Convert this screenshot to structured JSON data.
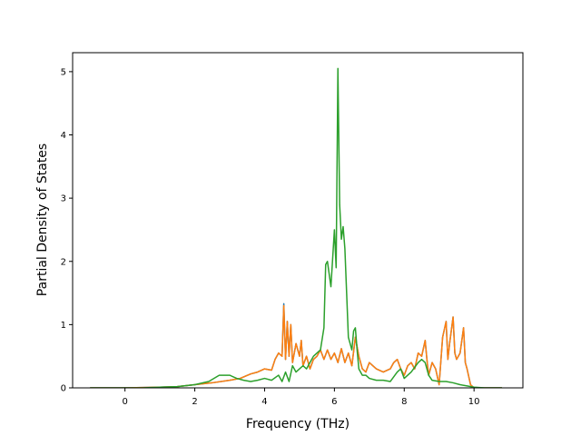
{
  "chart_data": {
    "type": "line",
    "title": "",
    "xlabel": "Frequency (THz)",
    "ylabel": "Partial Density of States",
    "xlim": [
      -1.5,
      11.4
    ],
    "ylim": [
      0,
      5.3
    ],
    "xticks": [
      0,
      2,
      4,
      6,
      8,
      10
    ],
    "yticks": [
      0,
      1,
      2,
      3,
      4,
      5
    ],
    "grid": false,
    "legend": "none",
    "series": [
      {
        "color": "#1f77b4",
        "x": [
          -1.0,
          0.0,
          1.0,
          1.5,
          2.0,
          2.5,
          3.0,
          3.3,
          3.6,
          3.8,
          4.0,
          4.2,
          4.3,
          4.4,
          4.5,
          4.55,
          4.6,
          4.65,
          4.7,
          4.75,
          4.8,
          4.85,
          4.9,
          5.0,
          5.05,
          5.1,
          5.2,
          5.3,
          5.4,
          5.5,
          5.6,
          5.7,
          5.8,
          5.9,
          6.0,
          6.1,
          6.2,
          6.3,
          6.4,
          6.5,
          6.6,
          6.7,
          6.8,
          6.9,
          7.0,
          7.2,
          7.4,
          7.6,
          7.7,
          7.8,
          7.9,
          8.0,
          8.1,
          8.2,
          8.3,
          8.4,
          8.5,
          8.6,
          8.65,
          8.7,
          8.8,
          8.9,
          9.0,
          9.1,
          9.2,
          9.25,
          9.3,
          9.4,
          9.45,
          9.5,
          9.6,
          9.7,
          9.75,
          9.8,
          9.9,
          10.0,
          10.8
        ],
        "values": [
          0,
          0.0,
          0.01,
          0.02,
          0.05,
          0.08,
          0.12,
          0.15,
          0.22,
          0.25,
          0.3,
          0.28,
          0.45,
          0.55,
          0.5,
          1.33,
          0.45,
          1.05,
          0.5,
          1.0,
          0.4,
          0.55,
          0.7,
          0.5,
          0.75,
          0.35,
          0.5,
          0.3,
          0.45,
          0.5,
          0.6,
          0.45,
          0.6,
          0.45,
          0.55,
          0.4,
          0.62,
          0.4,
          0.55,
          0.35,
          0.8,
          0.5,
          0.3,
          0.25,
          0.4,
          0.3,
          0.25,
          0.3,
          0.4,
          0.45,
          0.3,
          0.2,
          0.35,
          0.4,
          0.3,
          0.55,
          0.5,
          0.75,
          0.45,
          0.2,
          0.4,
          0.3,
          0.05,
          0.8,
          1.05,
          0.45,
          0.7,
          1.12,
          0.55,
          0.45,
          0.55,
          0.95,
          0.4,
          0.3,
          0.05,
          0.0,
          0.0
        ]
      },
      {
        "color": "#ff7f0e",
        "x": [
          -1.0,
          0.0,
          1.0,
          1.5,
          2.0,
          2.5,
          3.0,
          3.3,
          3.6,
          3.8,
          4.0,
          4.2,
          4.3,
          4.4,
          4.5,
          4.55,
          4.6,
          4.65,
          4.7,
          4.75,
          4.8,
          4.85,
          4.9,
          5.0,
          5.05,
          5.1,
          5.2,
          5.3,
          5.4,
          5.5,
          5.6,
          5.7,
          5.8,
          5.9,
          6.0,
          6.1,
          6.2,
          6.3,
          6.4,
          6.5,
          6.6,
          6.7,
          6.8,
          6.9,
          7.0,
          7.2,
          7.4,
          7.6,
          7.7,
          7.8,
          7.9,
          8.0,
          8.1,
          8.2,
          8.3,
          8.4,
          8.5,
          8.6,
          8.65,
          8.7,
          8.8,
          8.9,
          9.0,
          9.1,
          9.2,
          9.25,
          9.3,
          9.4,
          9.45,
          9.5,
          9.6,
          9.7,
          9.75,
          9.8,
          9.9,
          10.0,
          10.8
        ],
        "values": [
          0,
          0.0,
          0.01,
          0.02,
          0.05,
          0.08,
          0.12,
          0.15,
          0.22,
          0.25,
          0.3,
          0.28,
          0.45,
          0.55,
          0.5,
          1.3,
          0.45,
          1.05,
          0.5,
          1.0,
          0.4,
          0.55,
          0.7,
          0.5,
          0.75,
          0.35,
          0.5,
          0.3,
          0.45,
          0.5,
          0.6,
          0.45,
          0.6,
          0.45,
          0.55,
          0.4,
          0.62,
          0.4,
          0.55,
          0.35,
          0.8,
          0.5,
          0.3,
          0.25,
          0.4,
          0.3,
          0.25,
          0.3,
          0.4,
          0.45,
          0.3,
          0.2,
          0.35,
          0.4,
          0.3,
          0.55,
          0.5,
          0.75,
          0.45,
          0.2,
          0.4,
          0.3,
          0.05,
          0.8,
          1.05,
          0.45,
          0.7,
          1.12,
          0.55,
          0.45,
          0.55,
          0.95,
          0.4,
          0.3,
          0.05,
          0.0,
          0.0
        ]
      },
      {
        "color": "#2ca02c",
        "x": [
          -1.0,
          0.0,
          0.5,
          1.0,
          1.5,
          2.0,
          2.4,
          2.7,
          3.0,
          3.2,
          3.4,
          3.6,
          3.8,
          4.0,
          4.2,
          4.4,
          4.5,
          4.6,
          4.7,
          4.8,
          4.9,
          5.0,
          5.1,
          5.2,
          5.3,
          5.4,
          5.5,
          5.6,
          5.7,
          5.75,
          5.8,
          5.9,
          5.95,
          6.0,
          6.05,
          6.1,
          6.15,
          6.2,
          6.25,
          6.3,
          6.35,
          6.4,
          6.5,
          6.55,
          6.6,
          6.65,
          6.7,
          6.8,
          6.9,
          7.0,
          7.2,
          7.4,
          7.6,
          7.8,
          7.9,
          8.0,
          8.2,
          8.4,
          8.5,
          8.6,
          8.7,
          8.8,
          9.0,
          9.2,
          9.4,
          9.6,
          9.8,
          10.0,
          10.3,
          10.8
        ],
        "values": [
          0,
          0.0,
          0.0,
          0.01,
          0.02,
          0.05,
          0.1,
          0.2,
          0.2,
          0.15,
          0.12,
          0.1,
          0.12,
          0.15,
          0.12,
          0.2,
          0.1,
          0.25,
          0.1,
          0.35,
          0.25,
          0.3,
          0.35,
          0.3,
          0.4,
          0.5,
          0.55,
          0.6,
          0.95,
          1.95,
          2.0,
          1.6,
          2.05,
          2.5,
          1.9,
          5.05,
          2.9,
          2.35,
          2.55,
          2.2,
          1.5,
          0.8,
          0.6,
          0.9,
          0.95,
          0.6,
          0.3,
          0.2,
          0.2,
          0.15,
          0.12,
          0.12,
          0.1,
          0.25,
          0.3,
          0.15,
          0.25,
          0.4,
          0.45,
          0.4,
          0.2,
          0.12,
          0.1,
          0.1,
          0.08,
          0.05,
          0.03,
          0.01,
          0.0,
          0.0
        ]
      }
    ]
  }
}
